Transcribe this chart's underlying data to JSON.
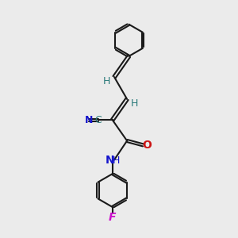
{
  "bg_color": "#ebebeb",
  "line_color": "#1a1a1a",
  "bond_lw": 1.5,
  "atom_colors": {
    "N": "#1515cc",
    "O": "#cc1515",
    "F": "#cc10cc",
    "C": "#2a7a7a",
    "H": "#2a7a7a",
    "default": "#1a1a1a"
  },
  "dbo": 0.055
}
